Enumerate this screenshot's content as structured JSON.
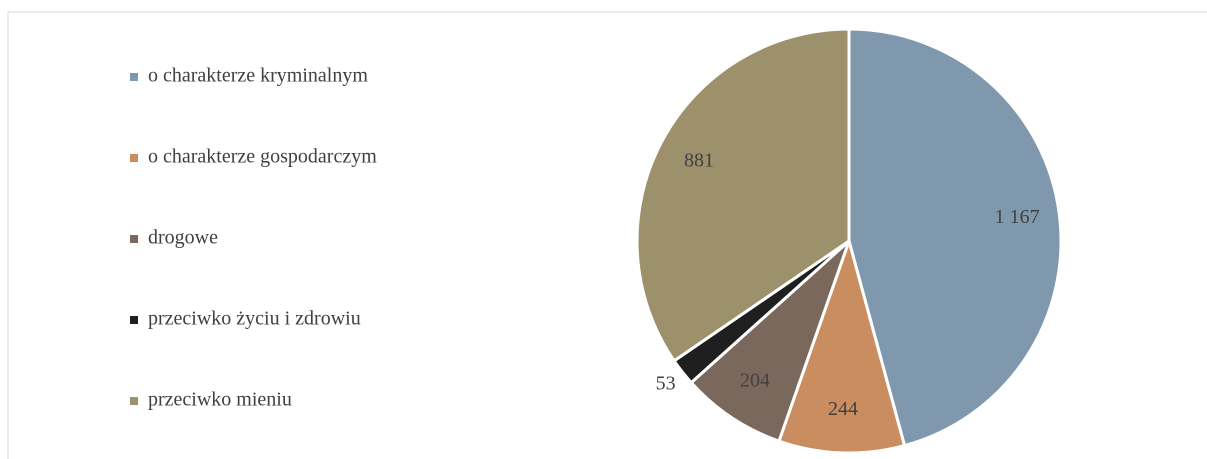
{
  "chart_data": {
    "type": "pie",
    "categories": [
      "o charakterze kryminalnym",
      "o charakterze gospodarczym",
      "drogowe",
      "przeciwko życiu i zdrowiu",
      "przeciwko mieniu"
    ],
    "values": [
      1167,
      244,
      204,
      53,
      881
    ],
    "value_labels": [
      "1 167",
      "244",
      "204",
      "53",
      "881"
    ],
    "colors": [
      "#7f98ae",
      "#c98d5f",
      "#7a685c",
      "#1f1f1f",
      "#9d916c"
    ],
    "legend": "left"
  }
}
